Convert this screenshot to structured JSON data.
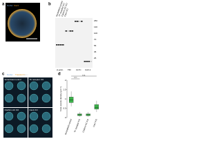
{
  "panels": {
    "a": {
      "label": "a",
      "channels": [
        "Nuclei",
        "Cav1"
      ]
    },
    "b": {
      "label": "b",
      "lanes": [
        "Scrambled control",
        "TF receptor KO",
        "Clathrin HC KO",
        "Cav1 KO"
      ],
      "groups": [
        "β-actin",
        "TfR",
        "CLTC",
        "CAV-1"
      ],
      "markers": [
        "250",
        "130",
        "100",
        "70",
        "55",
        "35",
        "25"
      ]
    },
    "c": {
      "label": "c",
      "channels": [
        "Nuclei",
        "Transferrin",
        "Actin"
      ],
      "images": [
        "Scrambled control",
        "TF receptor KO",
        "Clathrin HC KO",
        "Cav1 KO"
      ]
    },
    "d": {
      "label": "d"
    }
  },
  "chart_data": {
    "type": "box",
    "ylabel": "Total vesicle density (µm⁻²)",
    "categories": [
      "Scrambled control",
      "TF receptor KO",
      "Clathrin HC KO",
      "Cav1 KO"
    ],
    "color": "#3cb44b",
    "series": [
      {
        "min": [
          0.6,
          0.05,
          0.05,
          0.3
        ],
        "q1": [
          0.8,
          0.1,
          0.1,
          0.45
        ],
        "median": [
          0.95,
          0.15,
          0.15,
          0.55
        ],
        "q3": [
          1.1,
          0.2,
          0.2,
          0.7
        ],
        "max": [
          1.4,
          0.3,
          0.3,
          0.9
        ]
      }
    ],
    "ylim": [
      0,
      2
    ],
    "yticks": [
      0,
      0.5,
      1,
      1.5,
      2
    ],
    "annotations": [
      "****",
      "n.s."
    ]
  }
}
